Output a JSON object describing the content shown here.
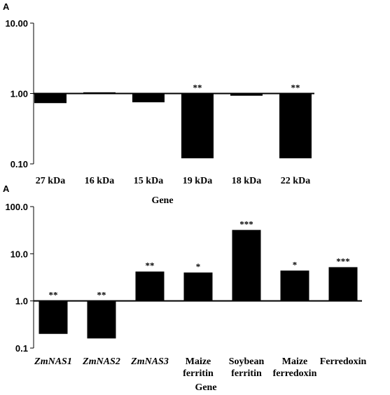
{
  "chart_data": [
    {
      "type": "bar",
      "panel_label": "A",
      "yscale": "log",
      "baseline": 1.0,
      "ylim": [
        0.1,
        10.0
      ],
      "yticks": [
        "10.00",
        "1.00",
        "0.10"
      ],
      "categories": [
        "27 kDa",
        "16 kDa",
        "15 kDa",
        "19 kDa",
        "18 kDa",
        "22 kDa"
      ],
      "italic_categories": [
        false,
        false,
        false,
        false,
        false,
        false
      ],
      "values": [
        0.73,
        1.04,
        0.75,
        0.12,
        0.93,
        0.12
      ],
      "significance": [
        "",
        "",
        "",
        "**",
        "",
        "**"
      ],
      "xlabel": "Gene",
      "ylabel": "",
      "grid": false,
      "bar_color": "#000000"
    },
    {
      "type": "bar",
      "panel_label": "A",
      "yscale": "log",
      "baseline": 1.0,
      "ylim": [
        0.1,
        100.0
      ],
      "yticks": [
        "100.0",
        "10.0",
        "1.0",
        "0.1"
      ],
      "categories": [
        "ZmNAS1",
        "ZmNAS2",
        "ZmNAS3",
        "Maize ferritin",
        "Soybean ferritin",
        "Maize ferredoxin",
        "Ferredoxin"
      ],
      "italic_categories": [
        true,
        true,
        true,
        false,
        false,
        false,
        false
      ],
      "values": [
        0.2,
        0.16,
        4.2,
        4.0,
        32.0,
        4.4,
        5.2
      ],
      "significance": [
        "**",
        "**",
        "**",
        "*",
        "***",
        "*",
        "***"
      ],
      "xlabel": "Gene",
      "ylabel": "",
      "grid": false,
      "bar_color": "#000000"
    }
  ]
}
